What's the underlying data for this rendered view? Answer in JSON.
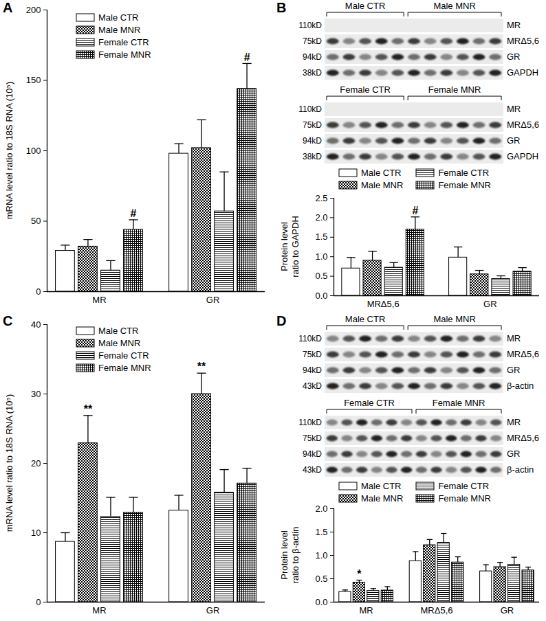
{
  "chart_data": [
    {
      "type": "bar",
      "title": "A",
      "y_label": "mRNA level ratio to 18S RNA (10⁵)",
      "categories": [
        "MR",
        "GR"
      ],
      "series": [
        {
          "name": "Male CTR",
          "color": "#ffffff",
          "values": [
            29,
            98
          ],
          "errors": [
            4,
            7
          ]
        },
        {
          "name": "Male MNR",
          "color": "#000000",
          "values": [
            32,
            102
          ],
          "errors": [
            5,
            20
          ]
        },
        {
          "name": "Female CTR",
          "color": "#000000",
          "values": [
            15,
            57
          ],
          "errors": [
            7,
            28
          ]
        },
        {
          "name": "Female MNR",
          "color": "#000000",
          "values": [
            44,
            144
          ],
          "errors": [
            7,
            18
          ]
        }
      ],
      "ylim": [
        0,
        200
      ],
      "yticks": [
        0,
        50,
        100,
        150,
        200
      ],
      "legend": "top-left",
      "annotations": [
        {
          "text": "#",
          "category": "MR",
          "series": "Female MNR"
        },
        {
          "text": "#",
          "category": "GR",
          "series": "Female MNR"
        }
      ]
    },
    {
      "type": "bar",
      "title": "B",
      "y_label": "Protein level ratio to GAPDH",
      "categories": [
        "MRΔ5,6",
        "GR"
      ],
      "series": [
        {
          "name": "Male CTR",
          "color": "#ffffff",
          "values": [
            0.7,
            0.98
          ],
          "errors": [
            0.28,
            0.27
          ]
        },
        {
          "name": "Male MNR",
          "color": "#000000",
          "values": [
            0.9,
            0.55
          ],
          "errors": [
            0.24,
            0.1
          ]
        },
        {
          "name": "Female CTR",
          "color": "#000000",
          "values": [
            0.72,
            0.43
          ],
          "errors": [
            0.13,
            0.08
          ]
        },
        {
          "name": "Female MNR",
          "color": "#000000",
          "values": [
            1.7,
            0.62
          ],
          "errors": [
            0.32,
            0.1
          ]
        }
      ],
      "ylim": [
        0,
        2.5
      ],
      "yticks": [
        {
          "value": 0,
          "label": "0.0"
        },
        0.5,
        {
          "value": 1,
          "label": "1.0"
        },
        1.5,
        {
          "value": 2,
          "label": "2.0"
        },
        2.5
      ],
      "legend": "top",
      "annotations": [
        {
          "text": "#",
          "category": "MRΔ5,6",
          "series": "Female MNR"
        }
      ]
    },
    {
      "type": "bar",
      "title": "C",
      "y_label": "mRNA level ratio to 18S RNA (10⁵)",
      "categories": [
        "MR",
        "GR"
      ],
      "series": [
        {
          "name": "Male CTR",
          "color": "#ffffff",
          "values": [
            8.7,
            13.2
          ],
          "errors": [
            1.3,
            2.2
          ]
        },
        {
          "name": "Male MNR",
          "color": "#000000",
          "values": [
            22.9,
            30
          ],
          "errors": [
            4,
            3
          ]
        },
        {
          "name": "Female CTR",
          "color": "#000000",
          "values": [
            12.3,
            15.8
          ],
          "errors": [
            2.8,
            3.3
          ]
        },
        {
          "name": "Female MNR",
          "color": "#000000",
          "values": [
            12.9,
            17.1
          ],
          "errors": [
            2.2,
            2.2
          ]
        }
      ],
      "ylim": [
        0,
        40
      ],
      "yticks": [
        0,
        10,
        20,
        30,
        40
      ],
      "legend": "top-left",
      "annotations": [
        {
          "text": "**",
          "category": "MR",
          "series": "Male MNR"
        },
        {
          "text": "**",
          "category": "GR",
          "series": "Male MNR"
        }
      ]
    },
    {
      "type": "bar",
      "title": "D",
      "y_label": "Protein level ratio to β-actin",
      "categories": [
        "MR",
        "MRΔ5,6",
        "GR"
      ],
      "series": [
        {
          "name": "Male CTR",
          "color": "#ffffff",
          "values": [
            0.22,
            0.88,
            0.66
          ],
          "errors": [
            0.04,
            0.2,
            0.14
          ]
        },
        {
          "name": "Male MNR",
          "color": "#000000",
          "values": [
            0.42,
            1.22,
            0.75
          ],
          "errors": [
            0.05,
            0.12,
            0.1
          ]
        },
        {
          "name": "Female CTR",
          "color": "#000000",
          "values": [
            0.24,
            1.27,
            0.8
          ],
          "errors": [
            0.05,
            0.2,
            0.16
          ]
        },
        {
          "name": "Female MNR",
          "color": "#000000",
          "values": [
            0.25,
            0.85,
            0.68
          ],
          "errors": [
            0.08,
            0.12,
            0.07
          ]
        }
      ],
      "ylim": [
        0,
        2
      ],
      "yticks": [
        {
          "value": 0,
          "label": "0.0"
        },
        0.5,
        {
          "value": 1,
          "label": "1.0"
        },
        1.5,
        {
          "value": 2,
          "label": "2.0"
        }
      ],
      "legend": "top",
      "annotations": [
        {
          "text": "*",
          "category": "MR",
          "series": "Male MNR"
        }
      ]
    }
  ],
  "blots": [
    {
      "panel": "B",
      "blocks": [
        {
          "groups": [
            {
              "label": "Male CTR",
              "lanes": 5
            },
            {
              "label": "Male MNR",
              "lanes": 6
            }
          ],
          "rows": [
            {
              "size": "110kD",
              "label": "MR",
              "bands": false
            },
            {
              "size": "75kD",
              "label": "MRΔ5,6",
              "bands": true
            },
            {
              "size": "94kD",
              "label": "GR",
              "bands": true
            },
            {
              "size": "38kD",
              "label": "GAPDH",
              "bands": true
            }
          ]
        },
        {
          "groups": [
            {
              "label": "Female CTR",
              "lanes": 5
            },
            {
              "label": "Female MNR",
              "lanes": 6
            }
          ],
          "rows": [
            {
              "size": "110kD",
              "label": "MR",
              "bands": false
            },
            {
              "size": "75kD",
              "label": "MRΔ5,6",
              "bands": true
            },
            {
              "size": "94kD",
              "label": "GR",
              "bands": true
            },
            {
              "size": "38kD",
              "label": "GAPDH",
              "bands": true
            }
          ]
        }
      ]
    },
    {
      "panel": "D",
      "blocks": [
        {
          "groups": [
            {
              "label": "Male CTR",
              "lanes": 5
            },
            {
              "label": "Male MNR",
              "lanes": 6
            }
          ],
          "rows": [
            {
              "size": "110kD",
              "label": "MR",
              "bands": true
            },
            {
              "size": "75kD",
              "label": "MRΔ5,6",
              "bands": true
            },
            {
              "size": "94kD",
              "label": "GR",
              "bands": true
            },
            {
              "size": "43kD",
              "label": "β-actin",
              "bands": true
            }
          ]
        },
        {
          "groups": [
            {
              "label": "Female CTR",
              "lanes": 6
            },
            {
              "label": "Female MNR",
              "lanes": 6
            }
          ],
          "rows": [
            {
              "size": "110kD",
              "label": "MR",
              "bands": true
            },
            {
              "size": "75kD",
              "label": "MRΔ5,6",
              "bands": true
            },
            {
              "size": "94kD",
              "label": "GR",
              "bands": true
            },
            {
              "size": "43kD",
              "label": "β-actin",
              "bands": true
            }
          ]
        }
      ]
    }
  ]
}
